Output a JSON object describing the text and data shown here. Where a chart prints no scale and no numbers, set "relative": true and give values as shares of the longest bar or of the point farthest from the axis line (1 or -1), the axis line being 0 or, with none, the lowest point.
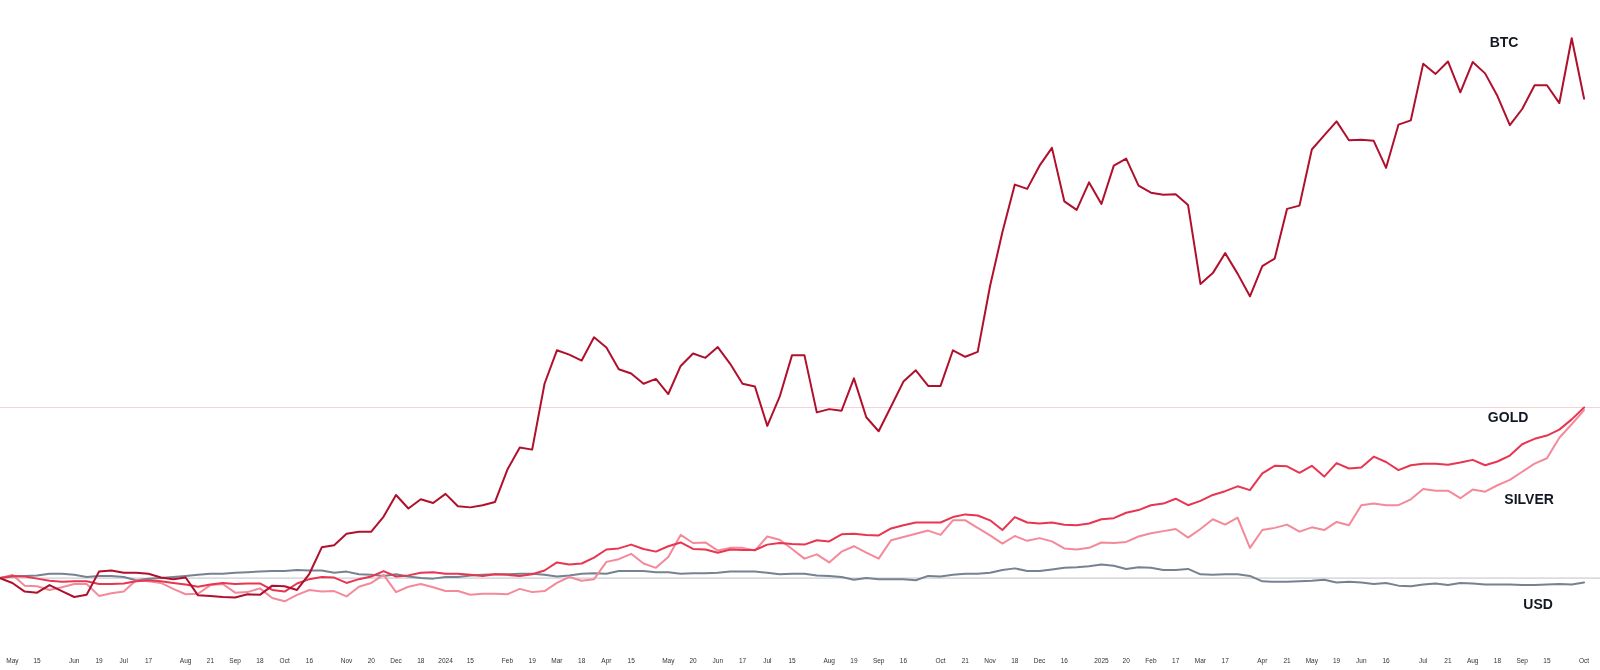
{
  "chart_data": {
    "type": "line",
    "relative": true,
    "marker": "none",
    "line_style": "solid",
    "x": [
      "2023-04-24",
      "2023-05-01",
      "2023-05-08",
      "2023-05-15",
      "2023-05-22",
      "2023-05-29",
      "2023-06-05",
      "2023-06-12",
      "2023-06-19",
      "2023-06-26",
      "2023-07-03",
      "2023-07-10",
      "2023-07-17",
      "2023-07-24",
      "2023-07-31",
      "2023-08-07",
      "2023-08-14",
      "2023-08-21",
      "2023-08-28",
      "2023-09-04",
      "2023-09-11",
      "2023-09-18",
      "2023-09-25",
      "2023-10-02",
      "2023-10-09",
      "2023-10-16",
      "2023-10-23",
      "2023-10-30",
      "2023-11-06",
      "2023-11-13",
      "2023-11-20",
      "2023-11-27",
      "2023-12-04",
      "2023-12-11",
      "2023-12-18",
      "2023-12-25",
      "2024-01-01",
      "2024-01-08",
      "2024-01-15",
      "2024-01-22",
      "2024-01-29",
      "2024-02-05",
      "2024-02-12",
      "2024-02-19",
      "2024-02-26",
      "2024-03-04",
      "2024-03-11",
      "2024-03-18",
      "2024-03-25",
      "2024-04-01",
      "2024-04-08",
      "2024-04-15",
      "2024-04-22",
      "2024-04-29",
      "2024-05-06",
      "2024-05-13",
      "2024-05-20",
      "2024-05-27",
      "2024-06-03",
      "2024-06-10",
      "2024-06-17",
      "2024-06-24",
      "2024-07-01",
      "2024-07-08",
      "2024-07-15",
      "2024-07-22",
      "2024-07-29",
      "2024-08-05",
      "2024-08-12",
      "2024-08-19",
      "2024-08-26",
      "2024-09-02",
      "2024-09-09",
      "2024-09-16",
      "2024-09-23",
      "2024-09-30",
      "2024-10-07",
      "2024-10-14",
      "2024-10-21",
      "2024-10-28",
      "2024-11-04",
      "2024-11-11",
      "2024-11-18",
      "2024-11-25",
      "2024-12-02",
      "2024-12-09",
      "2024-12-16",
      "2024-12-23",
      "2024-12-30",
      "2025-01-06",
      "2025-01-13",
      "2025-01-20",
      "2025-01-27",
      "2025-02-03",
      "2025-02-10",
      "2025-02-17",
      "2025-02-24",
      "2025-03-03",
      "2025-03-10",
      "2025-03-17",
      "2025-03-24",
      "2025-03-31",
      "2025-04-07",
      "2025-04-14",
      "2025-04-21",
      "2025-04-28",
      "2025-05-05",
      "2025-05-12",
      "2025-05-19",
      "2025-05-26",
      "2025-06-02",
      "2025-06-09",
      "2025-06-16",
      "2025-06-23",
      "2025-06-30",
      "2025-07-07",
      "2025-07-14",
      "2025-07-21",
      "2025-07-28",
      "2025-08-04",
      "2025-08-11",
      "2025-08-18",
      "2025-08-25",
      "2025-09-01",
      "2025-09-08",
      "2025-09-15",
      "2025-09-22",
      "2025-09-29",
      "2025-10-06"
    ],
    "xlim": [
      "2023-04-24",
      "2025-10-15"
    ],
    "xticks": [
      {
        "value": "2023-05-01",
        "label": "May"
      },
      {
        "value": "2023-05-15",
        "label": "15"
      },
      {
        "value": "2023-06-05",
        "label": "Jun"
      },
      {
        "value": "2023-06-19",
        "label": "19"
      },
      {
        "value": "2023-07-03",
        "label": "Jul"
      },
      {
        "value": "2023-07-17",
        "label": "17"
      },
      {
        "value": "2023-08-07",
        "label": "Aug"
      },
      {
        "value": "2023-08-21",
        "label": "21"
      },
      {
        "value": "2023-09-04",
        "label": "Sep"
      },
      {
        "value": "2023-09-18",
        "label": "18"
      },
      {
        "value": "2023-10-02",
        "label": "Oct"
      },
      {
        "value": "2023-10-16",
        "label": "16"
      },
      {
        "value": "2023-11-06",
        "label": "Nov"
      },
      {
        "value": "2023-11-20",
        "label": "20"
      },
      {
        "value": "2023-12-04",
        "label": "Dec"
      },
      {
        "value": "2023-12-18",
        "label": "18"
      },
      {
        "value": "2024-01-01",
        "label": "2024"
      },
      {
        "value": "2024-01-15",
        "label": "15"
      },
      {
        "value": "2024-02-05",
        "label": "Feb"
      },
      {
        "value": "2024-02-19",
        "label": "19"
      },
      {
        "value": "2024-03-04",
        "label": "Mar"
      },
      {
        "value": "2024-03-18",
        "label": "18"
      },
      {
        "value": "2024-04-01",
        "label": "Apr"
      },
      {
        "value": "2024-04-15",
        "label": "15"
      },
      {
        "value": "2024-05-06",
        "label": "May"
      },
      {
        "value": "2024-05-20",
        "label": "20"
      },
      {
        "value": "2024-06-03",
        "label": "Jun"
      },
      {
        "value": "2024-06-17",
        "label": "17"
      },
      {
        "value": "2024-07-01",
        "label": "Jul"
      },
      {
        "value": "2024-07-15",
        "label": "15"
      },
      {
        "value": "2024-08-05",
        "label": "Aug"
      },
      {
        "value": "2024-08-19",
        "label": "19"
      },
      {
        "value": "2024-09-02",
        "label": "Sep"
      },
      {
        "value": "2024-09-16",
        "label": "16"
      },
      {
        "value": "2024-10-07",
        "label": "Oct"
      },
      {
        "value": "2024-10-21",
        "label": "21"
      },
      {
        "value": "2024-11-04",
        "label": "Nov"
      },
      {
        "value": "2024-11-18",
        "label": "18"
      },
      {
        "value": "2024-12-02",
        "label": "Dec"
      },
      {
        "value": "2024-12-16",
        "label": "16"
      },
      {
        "value": "2025-01-06",
        "label": "2025"
      },
      {
        "value": "2025-01-20",
        "label": "20"
      },
      {
        "value": "2025-02-03",
        "label": "Feb"
      },
      {
        "value": "2025-02-17",
        "label": "17"
      },
      {
        "value": "2025-03-03",
        "label": "Mar"
      },
      {
        "value": "2025-03-17",
        "label": "17"
      },
      {
        "value": "2025-04-07",
        "label": "Apr"
      },
      {
        "value": "2025-04-21",
        "label": "21"
      },
      {
        "value": "2025-05-05",
        "label": "May"
      },
      {
        "value": "2025-05-19",
        "label": "19"
      },
      {
        "value": "2025-06-02",
        "label": "Jun"
      },
      {
        "value": "2025-06-16",
        "label": "16"
      },
      {
        "value": "2025-07-07",
        "label": "Jul"
      },
      {
        "value": "2025-07-21",
        "label": "21"
      },
      {
        "value": "2025-08-04",
        "label": "Aug"
      },
      {
        "value": "2025-08-18",
        "label": "18"
      },
      {
        "value": "2025-09-01",
        "label": "Sep"
      },
      {
        "value": "2025-09-15",
        "label": "15"
      },
      {
        "value": "2025-10-06",
        "label": "Oct"
      }
    ],
    "series": [
      {
        "name": "BTC",
        "color": "#b0102b",
        "values": [
          0,
          -0.009,
          -0.025,
          -0.027,
          -0.013,
          -0.024,
          -0.035,
          -0.031,
          0.012,
          0.014,
          0.01,
          0.01,
          0.008,
          0.001,
          -0.002,
          0.001,
          -0.032,
          -0.033,
          -0.035,
          -0.036,
          -0.03,
          -0.031,
          -0.014,
          -0.015,
          -0.022,
          0.008,
          0.057,
          0.061,
          0.082,
          0.086,
          0.086,
          0.114,
          0.154,
          0.129,
          0.146,
          0.139,
          0.156,
          0.133,
          0.131,
          0.135,
          0.141,
          0.201,
          0.242,
          0.238,
          0.36,
          0.422,
          0.414,
          0.403,
          0.446,
          0.427,
          0.387,
          0.379,
          0.36,
          0.369,
          0.341,
          0.393,
          0.416,
          0.408,
          0.428,
          0.397,
          0.36,
          0.355,
          0.282,
          0.336,
          0.413,
          0.413,
          0.307,
          0.313,
          0.31,
          0.37,
          0.298,
          0.272,
          0.318,
          0.364,
          0.385,
          0.356,
          0.356,
          0.422,
          0.41,
          0.419,
          0.541,
          0.641,
          0.729,
          0.721,
          0.764,
          0.797,
          0.698,
          0.682,
          0.733,
          0.693,
          0.764,
          0.777,
          0.727,
          0.714,
          0.71,
          0.711,
          0.691,
          0.545,
          0.565,
          0.602,
          0.564,
          0.522,
          0.578,
          0.592,
          0.684,
          0.69,
          0.794,
          0.82,
          0.846,
          0.811,
          0.812,
          0.81,
          0.76,
          0.84,
          0.848,
          0.953,
          0.934,
          0.957,
          0.9,
          0.956,
          0.935,
          0.893,
          0.839,
          0.869,
          0.913,
          0.913,
          0.88,
          1,
          0.888
        ]
      },
      {
        "name": "GOLD",
        "color": "#e83550",
        "values": [
          0,
          0.004,
          0.003,
          -0.001,
          -0.005,
          -0.007,
          -0.006,
          -0.006,
          -0.011,
          -0.011,
          -0.01,
          -0.006,
          -0.004,
          -0.006,
          -0.009,
          -0.012,
          -0.016,
          -0.012,
          -0.009,
          -0.011,
          -0.01,
          -0.01,
          -0.022,
          -0.025,
          -0.01,
          -0.002,
          0.002,
          0.001,
          -0.009,
          -0.002,
          0.003,
          0.013,
          0.003,
          0.005,
          0.01,
          0.011,
          0.008,
          0.008,
          0.006,
          0.004,
          0.007,
          0.006,
          0.004,
          0.007,
          0.014,
          0.029,
          0.025,
          0.027,
          0.038,
          0.053,
          0.055,
          0.062,
          0.054,
          0.049,
          0.059,
          0.066,
          0.054,
          0.053,
          0.047,
          0.053,
          0.052,
          0.052,
          0.062,
          0.065,
          0.063,
          0.062,
          0.07,
          0.068,
          0.081,
          0.082,
          0.08,
          0.079,
          0.092,
          0.098,
          0.103,
          0.103,
          0.103,
          0.113,
          0.118,
          0.116,
          0.107,
          0.089,
          0.113,
          0.103,
          0.101,
          0.103,
          0.099,
          0.098,
          0.101,
          0.109,
          0.111,
          0.121,
          0.126,
          0.135,
          0.138,
          0.147,
          0.135,
          0.143,
          0.154,
          0.161,
          0.17,
          0.163,
          0.194,
          0.208,
          0.207,
          0.195,
          0.208,
          0.188,
          0.213,
          0.203,
          0.205,
          0.225,
          0.215,
          0.2,
          0.209,
          0.212,
          0.212,
          0.21,
          0.214,
          0.219,
          0.209,
          0.216,
          0.227,
          0.248,
          0.258,
          0.264,
          0.275,
          0.294,
          0.316
        ]
      },
      {
        "name": "SILVER",
        "color": "#f4899a",
        "values": [
          0,
          0.006,
          -0.014,
          -0.015,
          -0.022,
          -0.017,
          -0.011,
          -0.011,
          -0.033,
          -0.028,
          -0.025,
          -0.004,
          -0.006,
          -0.009,
          -0.02,
          -0.03,
          -0.029,
          -0.013,
          -0.011,
          -0.027,
          -0.026,
          -0.019,
          -0.037,
          -0.043,
          -0.031,
          -0.022,
          -0.025,
          -0.024,
          -0.034,
          -0.016,
          -0.009,
          0.006,
          -0.026,
          -0.016,
          -0.011,
          -0.017,
          -0.024,
          -0.024,
          -0.031,
          -0.029,
          -0.029,
          -0.03,
          -0.02,
          -0.026,
          -0.024,
          -0.009,
          0.002,
          -0.005,
          -0.002,
          0.03,
          0.035,
          0.045,
          0.027,
          0.019,
          0.039,
          0.08,
          0.065,
          0.066,
          0.051,
          0.056,
          0.056,
          0.051,
          0.077,
          0.071,
          0.054,
          0.036,
          0.044,
          0.029,
          0.049,
          0.059,
          0.047,
          0.036,
          0.07,
          0.076,
          0.082,
          0.088,
          0.08,
          0.107,
          0.107,
          0.093,
          0.079,
          0.064,
          0.078,
          0.069,
          0.074,
          0.068,
          0.055,
          0.053,
          0.056,
          0.066,
          0.065,
          0.067,
          0.077,
          0.083,
          0.087,
          0.091,
          0.075,
          0.091,
          0.109,
          0.099,
          0.112,
          0.056,
          0.089,
          0.093,
          0.099,
          0.086,
          0.094,
          0.089,
          0.104,
          0.098,
          0.135,
          0.138,
          0.135,
          0.135,
          0.146,
          0.165,
          0.162,
          0.162,
          0.148,
          0.164,
          0.16,
          0.172,
          0.182,
          0.197,
          0.212,
          0.222,
          0.26,
          0.285,
          0.311
        ]
      },
      {
        "name": "USD",
        "color": "#778290",
        "values": [
          0,
          0.003,
          0.004,
          0.005,
          0.008,
          0.008,
          0.006,
          0.002,
          0.004,
          0.004,
          0.002,
          -0.004,
          -0.001,
          0.0,
          0.002,
          0.004,
          0.006,
          0.008,
          0.008,
          0.01,
          0.011,
          0.012,
          0.013,
          0.013,
          0.015,
          0.014,
          0.014,
          0.01,
          0.012,
          0.007,
          0.006,
          0.004,
          0.007,
          0.003,
          0.0,
          -0.001,
          0.002,
          0.002,
          0.005,
          0.006,
          0.007,
          0.007,
          0.008,
          0.008,
          0.006,
          0.003,
          0.005,
          0.008,
          0.009,
          0.008,
          0.013,
          0.013,
          0.013,
          0.011,
          0.011,
          0.008,
          0.009,
          0.009,
          0.01,
          0.012,
          0.012,
          0.012,
          0.01,
          0.007,
          0.008,
          0.008,
          0.005,
          0.004,
          0.002,
          -0.003,
          0.0,
          -0.002,
          -0.002,
          -0.002,
          -0.004,
          0.004,
          0.003,
          0.006,
          0.008,
          0.008,
          0.01,
          0.015,
          0.018,
          0.013,
          0.013,
          0.016,
          0.019,
          0.02,
          0.022,
          0.025,
          0.023,
          0.017,
          0.02,
          0.019,
          0.015,
          0.015,
          0.017,
          0.007,
          0.006,
          0.007,
          0.007,
          0.004,
          -0.006,
          -0.007,
          -0.007,
          -0.006,
          -0.005,
          -0.003,
          -0.008,
          -0.007,
          -0.008,
          -0.011,
          -0.009,
          -0.014,
          -0.015,
          -0.012,
          -0.01,
          -0.013,
          -0.009,
          -0.01,
          -0.012,
          -0.012,
          -0.012,
          -0.013,
          -0.013,
          -0.012,
          -0.011,
          -0.012,
          -0.008
        ]
      }
    ],
    "ref_lines": [
      {
        "axis": "y",
        "value": 0,
        "color": "#bfc2c8"
      },
      {
        "axis": "y",
        "value": 0.316,
        "color": "#f9d0d8"
      }
    ]
  }
}
